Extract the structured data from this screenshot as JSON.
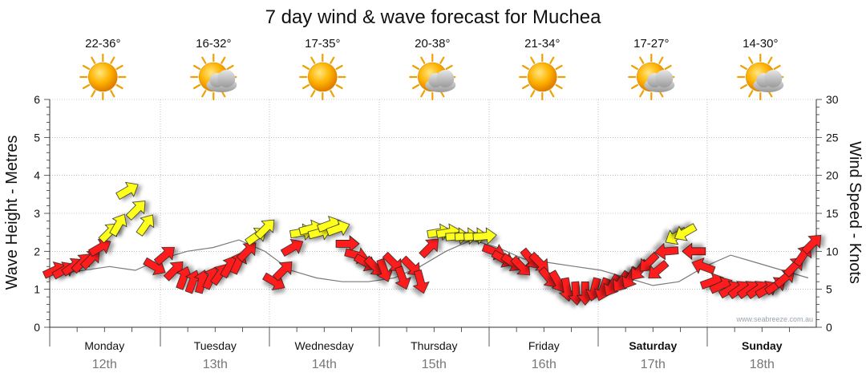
{
  "title": "7 day wind & wave forecast for Muchea",
  "credit": "www.seabreeze.com.au",
  "y_left_label": "Wave Height - Metres",
  "y_right_label": "Wind Speed - Knots",
  "days": [
    {
      "day": "Monday",
      "date": "12th",
      "temp": "22-36°",
      "icon": "sunny-icon",
      "bold": false
    },
    {
      "day": "Tuesday",
      "date": "13th",
      "temp": "16-32°",
      "icon": "partly-cloudy-icon",
      "bold": false
    },
    {
      "day": "Wednesday",
      "date": "14th",
      "temp": "17-35°",
      "icon": "sunny-icon",
      "bold": false
    },
    {
      "day": "Thursday",
      "date": "15th",
      "temp": "20-38°",
      "icon": "partly-cloudy-icon",
      "bold": false
    },
    {
      "day": "Friday",
      "date": "16th",
      "temp": "21-34°",
      "icon": "sunny-icon",
      "bold": false
    },
    {
      "day": "Saturday",
      "date": "17th",
      "temp": "17-27°",
      "icon": "partly-cloudy-icon",
      "bold": true
    },
    {
      "day": "Sunday",
      "date": "18th",
      "temp": "14-30°",
      "icon": "partly-cloudy-icon",
      "bold": true
    }
  ],
  "colors": {
    "strong_wind": "#ff1a1a",
    "moderate_wind": "#ffff1a",
    "arrow_stroke": "#222222",
    "grid": "#999999",
    "credit": "#9aa4ad"
  },
  "chart_data": {
    "type": "wind-arrow-timeseries",
    "title": "7 day wind & wave forecast for Muchea",
    "y_left": {
      "label": "Wave Height - Metres",
      "range": [
        0,
        6
      ],
      "ticks": [
        0,
        1,
        2,
        3,
        4,
        5,
        6
      ]
    },
    "y_right": {
      "label": "Wind Speed - Knots",
      "range": [
        0,
        30
      ],
      "ticks": [
        0,
        5,
        10,
        15,
        20,
        25,
        30
      ]
    },
    "grid": true,
    "x_days": [
      "Monday 12th",
      "Tuesday 13th",
      "Wednesday 14th",
      "Thursday 15th",
      "Friday 16th",
      "Saturday 17th",
      "Sunday 18th"
    ],
    "wind_series": [
      {
        "day": 0,
        "hour": 0,
        "knots": 7.5,
        "dir": 245,
        "color": "red"
      },
      {
        "day": 0,
        "hour": 2,
        "knots": 7.5,
        "dir": 240,
        "color": "red"
      },
      {
        "day": 0,
        "hour": 4,
        "knots": 8.0,
        "dir": 235,
        "color": "red"
      },
      {
        "day": 0,
        "hour": 6,
        "knots": 8.5,
        "dir": 225,
        "color": "red"
      },
      {
        "day": 0,
        "hour": 8,
        "knots": 9.0,
        "dir": 225,
        "color": "red"
      },
      {
        "day": 0,
        "hour": 10,
        "knots": 10.5,
        "dir": 240,
        "color": "red"
      },
      {
        "day": 0,
        "hour": 12,
        "knots": 12.5,
        "dir": 225,
        "color": "yellow"
      },
      {
        "day": 0,
        "hour": 14,
        "knots": 13.5,
        "dir": 210,
        "color": "yellow"
      },
      {
        "day": 0,
        "hour": 16,
        "knots": 18.0,
        "dir": 240,
        "color": "yellow"
      },
      {
        "day": 0,
        "hour": 18,
        "knots": 15.5,
        "dir": 225,
        "color": "yellow"
      },
      {
        "day": 0,
        "hour": 20,
        "knots": 13.5,
        "dir": 215,
        "color": "yellow"
      },
      {
        "day": 0,
        "hour": 22,
        "knots": 8.0,
        "dir": 300,
        "color": "red"
      },
      {
        "day": 1,
        "hour": 0,
        "knots": 9.5,
        "dir": 230,
        "color": "red"
      },
      {
        "day": 1,
        "hour": 2,
        "knots": 7.5,
        "dir": 225,
        "color": "red"
      },
      {
        "day": 1,
        "hour": 4,
        "knots": 6.5,
        "dir": 200,
        "color": "red"
      },
      {
        "day": 1,
        "hour": 6,
        "knots": 6.0,
        "dir": 200,
        "color": "red"
      },
      {
        "day": 1,
        "hour": 8,
        "knots": 6.0,
        "dir": 195,
        "color": "red"
      },
      {
        "day": 1,
        "hour": 10,
        "knots": 6.5,
        "dir": 205,
        "color": "red"
      },
      {
        "day": 1,
        "hour": 12,
        "knots": 7.0,
        "dir": 215,
        "color": "red"
      },
      {
        "day": 1,
        "hour": 14,
        "knots": 8.0,
        "dir": 210,
        "color": "red"
      },
      {
        "day": 1,
        "hour": 16,
        "knots": 8.5,
        "dir": 205,
        "color": "red"
      },
      {
        "day": 1,
        "hour": 18,
        "knots": 10.0,
        "dir": 225,
        "color": "red"
      },
      {
        "day": 1,
        "hour": 20,
        "knots": 12.0,
        "dir": 235,
        "color": "yellow"
      },
      {
        "day": 1,
        "hour": 22,
        "knots": 13.0,
        "dir": 225,
        "color": "yellow"
      },
      {
        "day": 2,
        "hour": 0,
        "knots": 6.0,
        "dir": 300,
        "color": "red"
      },
      {
        "day": 2,
        "hour": 2,
        "knots": 7.5,
        "dir": 225,
        "color": "red"
      },
      {
        "day": 2,
        "hour": 4,
        "knots": 10.5,
        "dir": 240,
        "color": "red"
      },
      {
        "day": 2,
        "hour": 6,
        "knots": 12.5,
        "dir": 260,
        "color": "yellow"
      },
      {
        "day": 2,
        "hour": 8,
        "knots": 13.0,
        "dir": 255,
        "color": "yellow"
      },
      {
        "day": 2,
        "hour": 10,
        "knots": 12.5,
        "dir": 255,
        "color": "yellow"
      },
      {
        "day": 2,
        "hour": 12,
        "knots": 13.5,
        "dir": 250,
        "color": "yellow"
      },
      {
        "day": 2,
        "hour": 14,
        "knots": 13.0,
        "dir": 250,
        "color": "yellow"
      },
      {
        "day": 2,
        "hour": 16,
        "knots": 11.0,
        "dir": 270,
        "color": "red"
      },
      {
        "day": 2,
        "hour": 18,
        "knots": 9.5,
        "dir": 285,
        "color": "red"
      },
      {
        "day": 2,
        "hour": 20,
        "knots": 8.5,
        "dir": 300,
        "color": "red"
      },
      {
        "day": 2,
        "hour": 22,
        "knots": 8.0,
        "dir": 315,
        "color": "red"
      },
      {
        "day": 3,
        "hour": 0,
        "knots": 7.5,
        "dir": 340,
        "color": "red"
      },
      {
        "day": 3,
        "hour": 2,
        "knots": 8.5,
        "dir": 315,
        "color": "red"
      },
      {
        "day": 3,
        "hour": 4,
        "knots": 6.5,
        "dir": 340,
        "color": "red"
      },
      {
        "day": 3,
        "hour": 6,
        "knots": 8.0,
        "dir": 315,
        "color": "red"
      },
      {
        "day": 3,
        "hour": 8,
        "knots": 6.0,
        "dir": 345,
        "color": "red"
      },
      {
        "day": 3,
        "hour": 10,
        "knots": 10.5,
        "dir": 225,
        "color": "red"
      },
      {
        "day": 3,
        "hour": 12,
        "knots": 12.5,
        "dir": 260,
        "color": "yellow"
      },
      {
        "day": 3,
        "hour": 14,
        "knots": 12.5,
        "dir": 260,
        "color": "yellow"
      },
      {
        "day": 3,
        "hour": 16,
        "knots": 12.0,
        "dir": 265,
        "color": "yellow"
      },
      {
        "day": 3,
        "hour": 18,
        "knots": 12.0,
        "dir": 265,
        "color": "yellow"
      },
      {
        "day": 3,
        "hour": 20,
        "knots": 12.0,
        "dir": 265,
        "color": "yellow"
      },
      {
        "day": 3,
        "hour": 22,
        "knots": 12.0,
        "dir": 265,
        "color": "yellow"
      },
      {
        "day": 4,
        "hour": 0,
        "knots": 10.0,
        "dir": 290,
        "color": "red"
      },
      {
        "day": 4,
        "hour": 2,
        "knots": 9.0,
        "dir": 300,
        "color": "red"
      },
      {
        "day": 4,
        "hour": 4,
        "knots": 8.5,
        "dir": 305,
        "color": "red"
      },
      {
        "day": 4,
        "hour": 6,
        "knots": 8.0,
        "dir": 315,
        "color": "red"
      },
      {
        "day": 4,
        "hour": 8,
        "knots": 9.0,
        "dir": 320,
        "color": "red"
      },
      {
        "day": 4,
        "hour": 10,
        "knots": 8.5,
        "dir": 315,
        "color": "red"
      },
      {
        "day": 4,
        "hour": 12,
        "knots": 6.5,
        "dir": 320,
        "color": "red"
      },
      {
        "day": 4,
        "hour": 14,
        "knots": 6.0,
        "dir": 330,
        "color": "red"
      },
      {
        "day": 4,
        "hour": 16,
        "knots": 5.0,
        "dir": 350,
        "color": "red"
      },
      {
        "day": 4,
        "hour": 18,
        "knots": 4.5,
        "dir": 355,
        "color": "red"
      },
      {
        "day": 4,
        "hour": 20,
        "knots": 4.5,
        "dir": 0,
        "color": "red"
      },
      {
        "day": 4,
        "hour": 22,
        "knots": 5.0,
        "dir": 15,
        "color": "red"
      },
      {
        "day": 5,
        "hour": 0,
        "knots": 5.0,
        "dir": 20,
        "color": "red"
      },
      {
        "day": 5,
        "hour": 2,
        "knots": 5.5,
        "dir": 30,
        "color": "red"
      },
      {
        "day": 5,
        "hour": 4,
        "knots": 6.0,
        "dir": 35,
        "color": "red"
      },
      {
        "day": 5,
        "hour": 6,
        "knots": 6.5,
        "dir": 30,
        "color": "red"
      },
      {
        "day": 5,
        "hour": 8,
        "knots": 7.5,
        "dir": 40,
        "color": "red"
      },
      {
        "day": 5,
        "hour": 10,
        "knots": 8.5,
        "dir": 45,
        "color": "red"
      },
      {
        "day": 5,
        "hour": 12,
        "knots": 7.5,
        "dir": 50,
        "color": "red"
      },
      {
        "day": 5,
        "hour": 14,
        "knots": 10.0,
        "dir": 85,
        "color": "red"
      },
      {
        "day": 5,
        "hour": 16,
        "knots": 12.0,
        "dir": 60,
        "color": "yellow"
      },
      {
        "day": 5,
        "hour": 18,
        "knots": 12.5,
        "dir": 60,
        "color": "yellow"
      },
      {
        "day": 5,
        "hour": 20,
        "knots": 10.0,
        "dir": 90,
        "color": "red"
      },
      {
        "day": 5,
        "hour": 22,
        "knots": 8.0,
        "dir": 110,
        "color": "red"
      },
      {
        "day": 6,
        "hour": 0,
        "knots": 6.0,
        "dir": 250,
        "color": "red"
      },
      {
        "day": 6,
        "hour": 2,
        "knots": 5.5,
        "dir": 245,
        "color": "red"
      },
      {
        "day": 6,
        "hour": 4,
        "knots": 5.0,
        "dir": 240,
        "color": "red"
      },
      {
        "day": 6,
        "hour": 6,
        "knots": 5.0,
        "dir": 235,
        "color": "red"
      },
      {
        "day": 6,
        "hour": 8,
        "knots": 5.0,
        "dir": 235,
        "color": "red"
      },
      {
        "day": 6,
        "hour": 10,
        "knots": 5.0,
        "dir": 235,
        "color": "red"
      },
      {
        "day": 6,
        "hour": 12,
        "knots": 5.0,
        "dir": 240,
        "color": "red"
      },
      {
        "day": 6,
        "hour": 14,
        "knots": 5.5,
        "dir": 235,
        "color": "red"
      },
      {
        "day": 6,
        "hour": 16,
        "knots": 6.5,
        "dir": 230,
        "color": "red"
      },
      {
        "day": 6,
        "hour": 18,
        "knots": 8.0,
        "dir": 225,
        "color": "red"
      },
      {
        "day": 6,
        "hour": 20,
        "knots": 9.5,
        "dir": 215,
        "color": "red"
      },
      {
        "day": 6,
        "hour": 22,
        "knots": 11.0,
        "dir": 225,
        "color": "red"
      }
    ],
    "wave_series_m": [
      1.4,
      1.5,
      1.6,
      1.5,
      1.8,
      2.0,
      2.1,
      2.3,
      2.0,
      1.5,
      1.3,
      1.2,
      1.2,
      1.3,
      1.6,
      2.0,
      2.3,
      2.1,
      1.8,
      1.7,
      1.6,
      1.5,
      1.3,
      1.1,
      1.2,
      1.6,
      1.9,
      1.7,
      1.5,
      1.3
    ]
  }
}
